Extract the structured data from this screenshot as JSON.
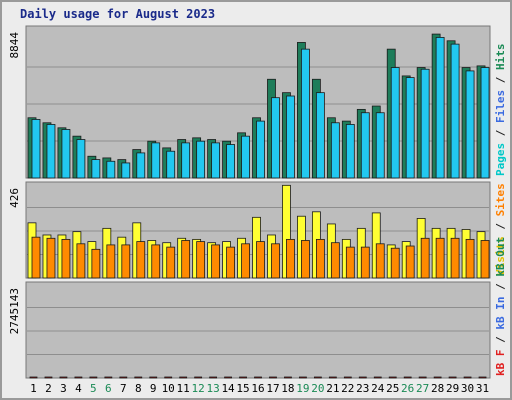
{
  "chart_data": {
    "type": "bar",
    "title": "Daily usage for August 2023",
    "categories": [
      "1",
      "2",
      "3",
      "4",
      "5",
      "6",
      "7",
      "8",
      "9",
      "10",
      "11",
      "12",
      "13",
      "14",
      "15",
      "16",
      "17",
      "18",
      "19",
      "20",
      "21",
      "22",
      "23",
      "24",
      "25",
      "26",
      "27",
      "28",
      "29",
      "30",
      "31"
    ],
    "weekend_days": [
      "5",
      "6",
      "12",
      "13",
      "19",
      "20",
      "26",
      "27"
    ],
    "panels": [
      {
        "id": "hits",
        "ymax_label": "8844",
        "ymax": 8844,
        "legend": [
          {
            "text": "Pages",
            "color": "#00c8c8"
          },
          {
            "text": " / ",
            "color": "#222222"
          },
          {
            "text": "Files",
            "color": "#3a6ae0"
          },
          {
            "text": " / ",
            "color": "#222222"
          },
          {
            "text": "Hits",
            "color": "#1a8a55"
          }
        ],
        "series": [
          {
            "name": "Hits",
            "color": "#1e7d5a",
            "values": [
              3600,
              3300,
              3000,
              2500,
              1300,
              1200,
              1100,
              1700,
              2200,
              1800,
              2300,
              2400,
              2300,
              2200,
              2700,
              3600,
              5900,
              5100,
              8100,
              5900,
              3600,
              3400,
              4100,
              4300,
              7700,
              6100,
              6600,
              8600,
              8200,
              6600,
              6700
            ]
          },
          {
            "name": "Files",
            "color": "#22c8f0",
            "values": [
              3500,
              3200,
              2900,
              2300,
              1100,
              1000,
              900,
              1500,
              2100,
              1600,
              2100,
              2200,
              2100,
              2000,
              2500,
              3400,
              4800,
              4900,
              7700,
              5100,
              3300,
              3200,
              3900,
              3900,
              6600,
              6000,
              6500,
              8400,
              8000,
              6400,
              6600
            ]
          }
        ]
      },
      {
        "id": "visits",
        "ymax_label": "426",
        "ymax": 426,
        "legend": [
          {
            "text": "Visits",
            "color": "#e0c000"
          },
          {
            "text": " / ",
            "color": "#222222"
          },
          {
            "text": "Sites",
            "color": "#ff8000"
          }
        ],
        "series": [
          {
            "name": "Visits",
            "color": "#ffff33",
            "values": [
              250,
              195,
              195,
              210,
              165,
              225,
              185,
              250,
              170,
              160,
              180,
              175,
              160,
              165,
              180,
              275,
              195,
              420,
              280,
              300,
              245,
              175,
              225,
              295,
              150,
              165,
              270,
              225,
              225,
              220,
              210
            ]
          },
          {
            "name": "Sites",
            "color": "#ff8a00",
            "values": [
              185,
              180,
              175,
              155,
              130,
              150,
              150,
              165,
              150,
              140,
              170,
              165,
              150,
              140,
              155,
              165,
              155,
              175,
              170,
              175,
              160,
              140,
              140,
              155,
              135,
              145,
              180,
              180,
              180,
              175,
              170
            ]
          }
        ]
      },
      {
        "id": "kbytes",
        "ymax_label": "2745143",
        "ymax": 2745143,
        "legend": [
          {
            "text": "kB F",
            "color": "#e02020"
          },
          {
            "text": " / ",
            "color": "#222222"
          },
          {
            "text": "kB In",
            "color": "#3a6ae0"
          },
          {
            "text": " / ",
            "color": "#222222"
          },
          {
            "text": "kB Out",
            "color": "#1a8a55"
          }
        ],
        "series": [
          {
            "name": "kB F",
            "color": "#ee1111",
            "values": [
              480,
              430,
              380,
              330,
              130,
              140,
              120,
              170,
              270,
              230,
              270,
              280,
              290,
              270,
              360,
              490,
              1580,
              650,
              1780,
              2745,
              850,
              560,
              590,
              980,
              2400,
              850,
              870,
              1080,
              1030,
              880,
              980
            ]
          }
        ]
      }
    ]
  }
}
